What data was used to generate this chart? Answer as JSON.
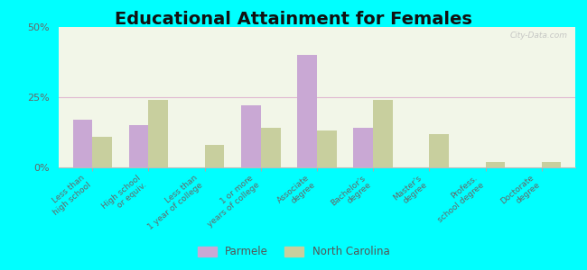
{
  "title": "Educational Attainment for Females",
  "categories": [
    "Less than\nhigh school",
    "High school\nor equiv.",
    "Less than\n1 year of college",
    "1 or more\nyears of college",
    "Associate\ndegree",
    "Bachelor's\ndegree",
    "Master's\ndegree",
    "Profess.\nschool degree",
    "Doctorate\ndegree"
  ],
  "parmele": [
    17,
    15,
    0,
    22,
    40,
    14,
    0,
    0,
    0
  ],
  "north_carolina": [
    11,
    24,
    8,
    14,
    13,
    24,
    12,
    2,
    2
  ],
  "parmele_color": "#c9a8d4",
  "nc_color": "#c8cf9e",
  "background_color": "#00ffff",
  "plot_bg": "#f0f5e8",
  "ylim": [
    0,
    50
  ],
  "yticks": [
    0,
    25,
    50
  ],
  "ytick_labels": [
    "0%",
    "25%",
    "50%"
  ],
  "bar_width": 0.35,
  "title_fontsize": 14,
  "legend_labels": [
    "Parmele",
    "North Carolina"
  ]
}
